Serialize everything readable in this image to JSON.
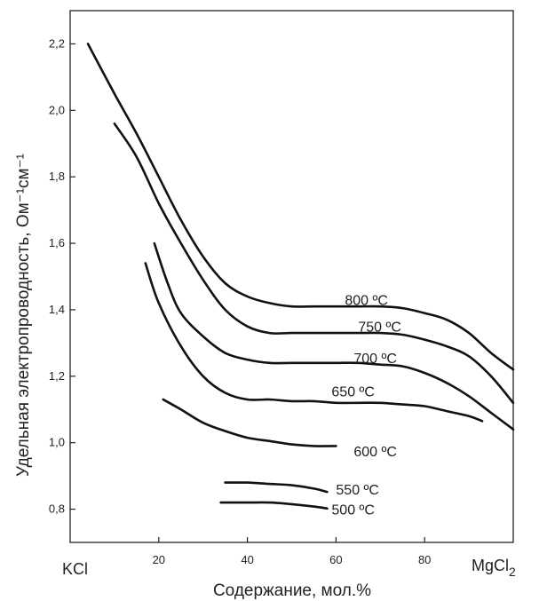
{
  "chart_data": {
    "type": "line",
    "title": "",
    "xlabel": "Содержание, мол.%",
    "ylabel": "Удельная электропроводность, Ом⁻¹см⁻¹",
    "xlim": [
      0,
      100
    ],
    "ylim": [
      0.7,
      2.3
    ],
    "grid": false,
    "x_ticks": [
      20,
      40,
      60,
      80
    ],
    "x_tick_labels": [
      "20",
      "40",
      "60",
      "80"
    ],
    "y_ticks": [
      0.8,
      1.0,
      1.2,
      1.4,
      1.6,
      1.8,
      2.0,
      2.2
    ],
    "y_tick_labels": [
      "0,8",
      "1,0",
      "1,2",
      "1,4",
      "1,6",
      "1,8",
      "2,0",
      "2,2"
    ],
    "x_end_labels": {
      "left": "KCl",
      "right_main": "MgCl",
      "right_sub": "2"
    },
    "series": [
      {
        "name": "800 °C",
        "label": "800 ºC",
        "x": [
          4,
          10,
          15,
          20,
          25,
          30,
          35,
          40,
          45,
          50,
          55,
          60,
          65,
          70,
          75,
          80,
          85,
          90,
          95,
          100
        ],
        "y": [
          2.2,
          2.05,
          1.93,
          1.8,
          1.67,
          1.56,
          1.48,
          1.44,
          1.42,
          1.41,
          1.41,
          1.41,
          1.41,
          1.41,
          1.405,
          1.39,
          1.37,
          1.33,
          1.27,
          1.22
        ]
      },
      {
        "name": "750 °C",
        "label": "750 ºC",
        "x": [
          10,
          15,
          20,
          25,
          30,
          35,
          40,
          45,
          50,
          55,
          60,
          65,
          70,
          75,
          80,
          85,
          90,
          95,
          100
        ],
        "y": [
          1.96,
          1.86,
          1.72,
          1.6,
          1.49,
          1.4,
          1.35,
          1.33,
          1.33,
          1.33,
          1.33,
          1.33,
          1.33,
          1.325,
          1.31,
          1.29,
          1.26,
          1.2,
          1.12
        ]
      },
      {
        "name": "700 °C",
        "label": "700 ºC",
        "x": [
          19,
          22,
          25,
          30,
          35,
          40,
          45,
          50,
          55,
          60,
          65,
          70,
          75,
          80,
          85,
          90,
          95,
          100
        ],
        "y": [
          1.6,
          1.48,
          1.39,
          1.32,
          1.27,
          1.25,
          1.24,
          1.24,
          1.24,
          1.24,
          1.24,
          1.235,
          1.23,
          1.21,
          1.18,
          1.14,
          1.09,
          1.04
        ]
      },
      {
        "name": "650 °C",
        "label": "650 ºC",
        "x": [
          17,
          20,
          25,
          30,
          35,
          40,
          45,
          50,
          55,
          60,
          65,
          70,
          75,
          80,
          85,
          90,
          93
        ],
        "y": [
          1.54,
          1.42,
          1.29,
          1.2,
          1.15,
          1.13,
          1.13,
          1.125,
          1.125,
          1.12,
          1.12,
          1.12,
          1.115,
          1.11,
          1.095,
          1.08,
          1.065
        ]
      },
      {
        "name": "600 °C",
        "label": "600 ºC",
        "x": [
          21,
          25,
          30,
          35,
          40,
          45,
          50,
          55,
          60
        ],
        "y": [
          1.13,
          1.1,
          1.06,
          1.035,
          1.015,
          1.005,
          0.995,
          0.99,
          0.99
        ]
      },
      {
        "name": "550 °C",
        "label": "550 ºC",
        "x": [
          35,
          40,
          45,
          50,
          55,
          58
        ],
        "y": [
          0.88,
          0.88,
          0.876,
          0.872,
          0.862,
          0.852
        ]
      },
      {
        "name": "500 °C",
        "label": "500 ºC",
        "x": [
          34,
          40,
          45,
          50,
          55,
          58
        ],
        "y": [
          0.82,
          0.82,
          0.82,
          0.815,
          0.808,
          0.802
        ]
      }
    ]
  }
}
